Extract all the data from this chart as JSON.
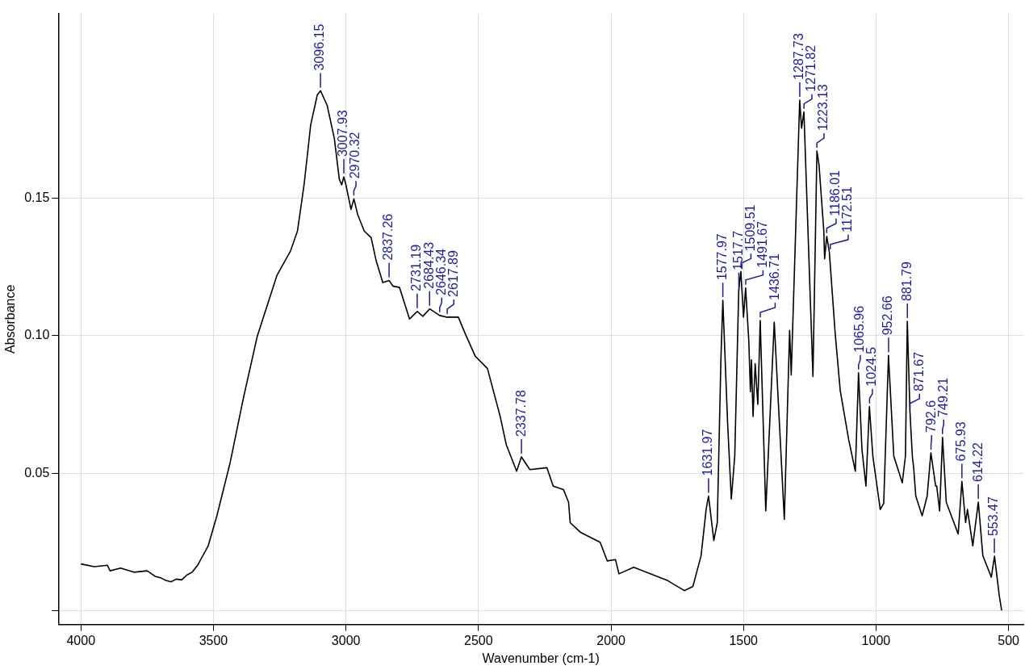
{
  "chart_data": {
    "type": "line",
    "xlabel": "Wavenumber (cm-1)",
    "ylabel": "Absorbance",
    "color": "#000000",
    "grid": true,
    "xlim": [
      4085,
      444
    ],
    "ylim": [
      -0.005,
      0.217
    ],
    "xticks": [
      4000,
      3500,
      3000,
      2500,
      2000,
      1500,
      1000,
      500
    ],
    "yticks": [
      {
        "value": 0,
        "label": null
      },
      {
        "value": 0.05,
        "label": "0.05"
      },
      {
        "value": 0.1,
        "label": "0.10"
      },
      {
        "value": 0.15,
        "label": "0.15"
      }
    ],
    "x": [
      4000,
      3950,
      3900,
      3890,
      3850,
      3800,
      3750,
      3720,
      3700,
      3680,
      3660,
      3640,
      3620,
      3600,
      3580,
      3560,
      3540,
      3520,
      3487,
      3437,
      3386,
      3335,
      3260,
      3209,
      3183,
      3158,
      3133,
      3108,
      3096,
      3071,
      3044,
      3025,
      3016,
      3008,
      3000,
      2981,
      2970,
      2956,
      2931,
      2905,
      2886,
      2861,
      2837,
      2823,
      2798,
      2760,
      2731,
      2710,
      2684,
      2646,
      2618,
      2576,
      2550,
      2512,
      2466,
      2418,
      2395,
      2356,
      2338,
      2306,
      2242,
      2218,
      2179,
      2160,
      2154,
      2115,
      2041,
      2014,
      1983,
      1970,
      1914,
      1850,
      1787,
      1723,
      1691,
      1660,
      1641,
      1632,
      1612,
      1599,
      1585,
      1578,
      1560,
      1546,
      1533,
      1518,
      1510,
      1500,
      1492,
      1480,
      1474,
      1470,
      1464,
      1456,
      1446,
      1437,
      1416,
      1384,
      1346,
      1326,
      1320,
      1288,
      1281,
      1272,
      1238,
      1223,
      1215,
      1197,
      1194,
      1186,
      1176,
      1154,
      1135,
      1103,
      1078,
      1066,
      1053,
      1038,
      1025,
      1012,
      984,
      971,
      953,
      933,
      901,
      889,
      882,
      872,
      863,
      858,
      850,
      826,
      807,
      793,
      775,
      771,
      760,
      749,
      735,
      690,
      676,
      662,
      655,
      635,
      614,
      597,
      565,
      553,
      535,
      526
    ],
    "values": [
      0.017,
      0.016,
      0.0165,
      0.0145,
      0.0155,
      0.014,
      0.0145,
      0.0125,
      0.012,
      0.011,
      0.0105,
      0.0115,
      0.0112,
      0.013,
      0.014,
      0.0165,
      0.02,
      0.0235,
      0.0345,
      0.0538,
      0.0777,
      0.0996,
      0.122,
      0.1308,
      0.138,
      0.1548,
      0.1766,
      0.1875,
      0.189,
      0.1837,
      0.1718,
      0.1568,
      0.1548,
      0.1577,
      0.1548,
      0.1459,
      0.1497,
      0.1441,
      0.138,
      0.1356,
      0.1272,
      0.1193,
      0.12,
      0.118,
      0.1175,
      0.106,
      0.1088,
      0.107,
      0.1097,
      0.1073,
      0.1067,
      0.1067,
      0.1007,
      0.0925,
      0.088,
      0.0706,
      0.0603,
      0.0507,
      0.0559,
      0.0513,
      0.052,
      0.0453,
      0.044,
      0.0394,
      0.032,
      0.0285,
      0.0249,
      0.0181,
      0.0186,
      0.0134,
      0.0158,
      0.0134,
      0.011,
      0.0073,
      0.0088,
      0.02,
      0.0368,
      0.0417,
      0.0255,
      0.032,
      0.0922,
      0.1128,
      0.0683,
      0.0406,
      0.0562,
      0.1164,
      0.1233,
      0.1067,
      0.1173,
      0.098,
      0.0796,
      0.0912,
      0.0706,
      0.0898,
      0.075,
      0.1055,
      0.0363,
      0.1049,
      0.0332,
      0.1019,
      0.0857,
      0.1856,
      0.1754,
      0.1813,
      0.0851,
      0.1671,
      0.162,
      0.138,
      0.1279,
      0.1361,
      0.1302,
      0.1007,
      0.08,
      0.0621,
      0.0507,
      0.0865,
      0.0585,
      0.0453,
      0.0742,
      0.0562,
      0.0368,
      0.039,
      0.0928,
      0.0562,
      0.0465,
      0.0562,
      0.1052,
      0.0724,
      0.0562,
      0.052,
      0.0417,
      0.0345,
      0.0417,
      0.0574,
      0.0453,
      0.0453,
      0.0363,
      0.063,
      0.0394,
      0.0279,
      0.047,
      0.032,
      0.0368,
      0.0236,
      0.0395,
      0.02,
      0.0122,
      0.0198,
      0.0055,
      0.0001
    ],
    "annotations": [
      {
        "text": "3096.15",
        "x": 3096.15,
        "y": 0.189
      },
      {
        "text": "3007.93",
        "x": 3007.93,
        "y": 0.1577
      },
      {
        "text": "2970.32",
        "x": 2970.32,
        "y": 0.1497
      },
      {
        "text": "2837.26",
        "x": 2837.26,
        "y": 0.12
      },
      {
        "text": "2731.19",
        "x": 2731.19,
        "y": 0.1088
      },
      {
        "text": "2684.43",
        "x": 2684.43,
        "y": 0.1097
      },
      {
        "text": "2646.34",
        "x": 2646.34,
        "y": 0.1073
      },
      {
        "text": "2617.89",
        "x": 2617.89,
        "y": 0.1067
      },
      {
        "text": "2337.78",
        "x": 2337.78,
        "y": 0.0559
      },
      {
        "text": "1631.97",
        "x": 1631.97,
        "y": 0.0417
      },
      {
        "text": "1577.97",
        "x": 1577.97,
        "y": 0.1128
      },
      {
        "text": "1517.7",
        "x": 1517.7,
        "y": 0.1164
      },
      {
        "text": "1509.51",
        "x": 1509.51,
        "y": 0.1233
      },
      {
        "text": "1491.67",
        "x": 1491.67,
        "y": 0.1173
      },
      {
        "text": "1436.71",
        "x": 1436.71,
        "y": 0.1055
      },
      {
        "text": "1287.73",
        "x": 1287.73,
        "y": 0.1856
      },
      {
        "text": "1271.82",
        "x": 1271.82,
        "y": 0.1813
      },
      {
        "text": "1223.13",
        "x": 1223.13,
        "y": 0.1671
      },
      {
        "text": "1186.01",
        "x": 1186.01,
        "y": 0.1361
      },
      {
        "text": "1172.51",
        "x": 1172.51,
        "y": 0.1302
      },
      {
        "text": "1065.96",
        "x": 1065.96,
        "y": 0.0865
      },
      {
        "text": "1024.5",
        "x": 1024.5,
        "y": 0.0742
      },
      {
        "text": "952.66",
        "x": 952.66,
        "y": 0.0928
      },
      {
        "text": "881.79",
        "x": 881.79,
        "y": 0.1052
      },
      {
        "text": "871.67",
        "x": 871.67,
        "y": 0.0724
      },
      {
        "text": "792.6",
        "x": 792.6,
        "y": 0.0574
      },
      {
        "text": "749.21",
        "x": 749.21,
        "y": 0.063
      },
      {
        "text": "675.93",
        "x": 675.93,
        "y": 0.047
      },
      {
        "text": "614.22",
        "x": 614.22,
        "y": 0.0395
      },
      {
        "text": "553.47",
        "x": 553.47,
        "y": 0.0198
      }
    ]
  }
}
